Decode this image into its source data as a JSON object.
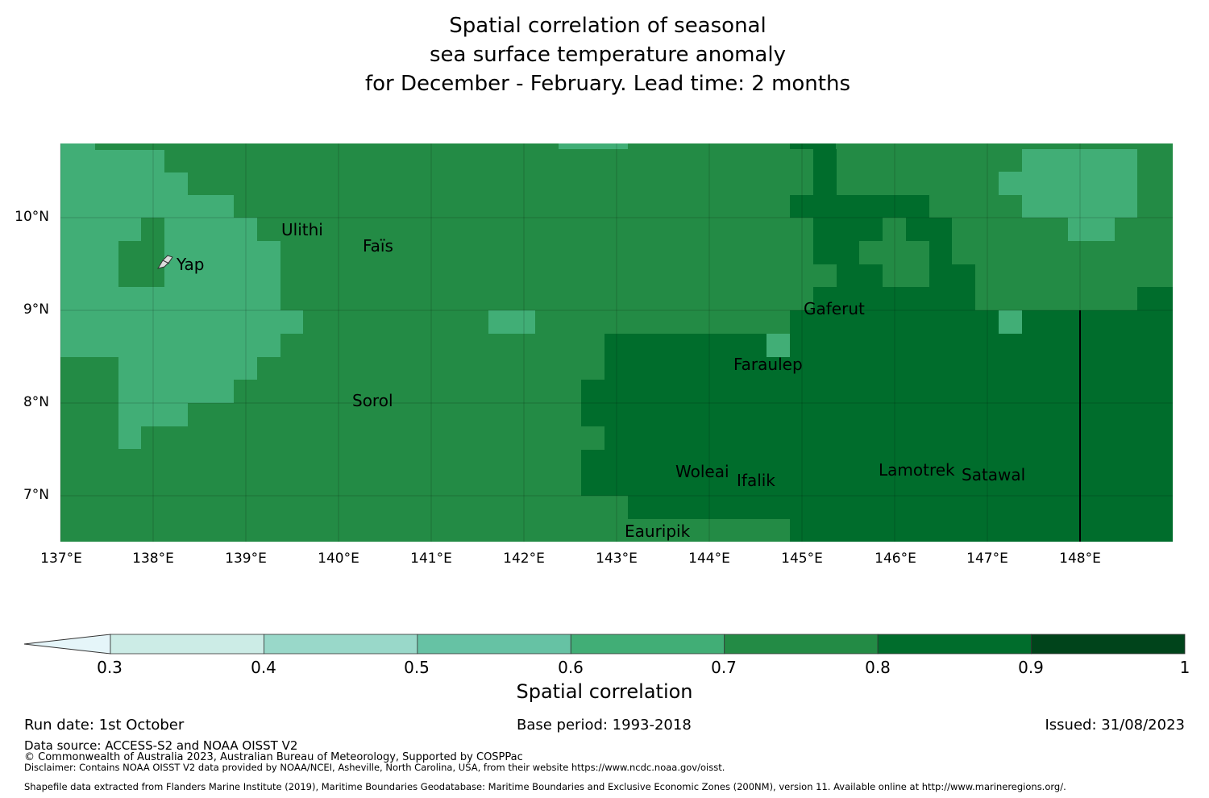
{
  "title": {
    "line1": "Spatial correlation of seasonal",
    "line2": "sea surface temperature anomaly",
    "line3": "for December - February. Lead time: 2 months"
  },
  "map": {
    "lat_ticks": [
      "10°N",
      "9°N",
      "8°N",
      "7°N"
    ],
    "lon_ticks": [
      "137°E",
      "138°E",
      "139°E",
      "140°E",
      "141°E",
      "142°E",
      "143°E",
      "144°E",
      "145°E",
      "146°E",
      "147°E",
      "148°E"
    ],
    "places": [
      "Ulithi",
      "Faïs",
      "Yap",
      "Gaferut",
      "Faraulep",
      "Sorol",
      "Woleai",
      "Ifalik",
      "Lamotrek",
      "Satawal",
      "Eauripik"
    ]
  },
  "colorbar": {
    "ticks": [
      "0.3",
      "0.4",
      "0.5",
      "0.6",
      "0.7",
      "0.8",
      "0.9",
      "1"
    ],
    "colors": [
      "#e5f5f9",
      "#ccece6",
      "#99d8c9",
      "#66c2a4",
      "#41ae76",
      "#238b45",
      "#006d2c",
      "#00441b"
    ],
    "label": "Spatial correlation"
  },
  "footer": {
    "run_date": "Run date: 1st October",
    "base_period": "Base period: 1993-2018",
    "issued": "Issued: 31/08/2023",
    "data_source": "Data source: ACCESS-S2 and NOAA OISST V2",
    "copyright": "© Commonwealth of Australia 2023, Australian Bureau of Meteorology, Supported by COSPPac",
    "disclaimer": "Disclaimer: Contains NOAA OISST V2 data provided by NOAA/NCEI, Asheville, North Carolina, USA, from their website https://www.ncdc.noaa.gov/oisst.",
    "shapefile": "Shapefile data extracted from Flanders Marine Institute (2019), Maritime Boundaries Geodatabase: Maritime Boundaries and Exclusive Economic Zones (200NM), version 11. Available online at http://www.marineregions.org/."
  }
}
